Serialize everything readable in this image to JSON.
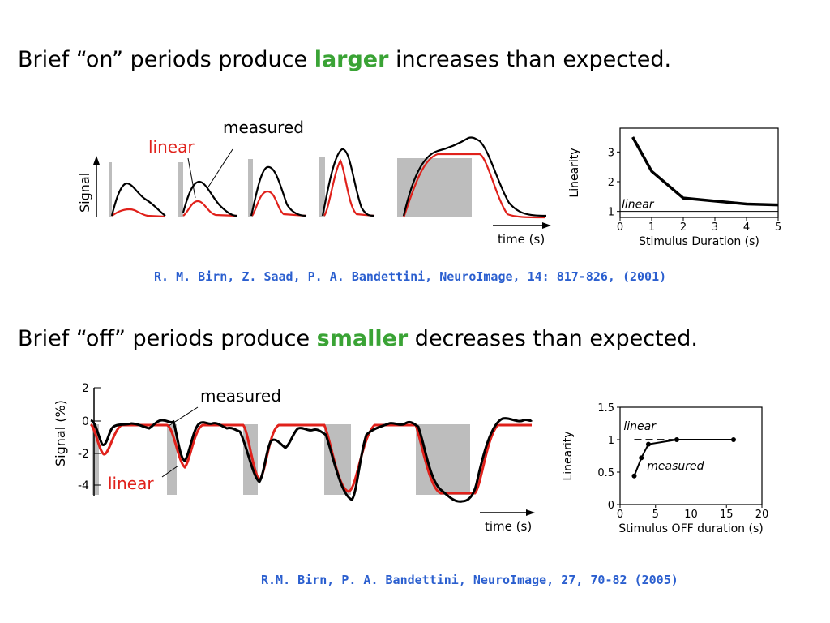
{
  "slide": {
    "section1": {
      "headline_pre": "Brief “on” periods produce ",
      "headline_accent": "larger",
      "headline_post": " increases than expected.",
      "citation": "R. M. Birn, Z. Saad, P. A. Bandettini, NeuroImage, 14: 817-826, (2001)"
    },
    "section2": {
      "headline_pre": "Brief “off” periods produce ",
      "headline_accent": "smaller",
      "headline_post": " decreases than expected.",
      "citation": "R.M. Birn, P. A. Bandettini, NeuroImage, 27, 70-82 (2005)"
    },
    "colors": {
      "accent_green": "#3aa335",
      "citation_blue": "#2b5fcf",
      "linear_red": "#e0211b",
      "stimulus_gray": "#bdbdbd"
    }
  },
  "figure1": {
    "label_measured": "measured",
    "label_linear": "linear",
    "ylabel": "Signal",
    "xlabel": "time (s)"
  },
  "figure2": {
    "label_measured": "measured",
    "label_linear": "linear",
    "ylabel": "Signal (%)",
    "xlabel": "time (s)",
    "yticks": [
      "2",
      "0",
      "-2",
      "-4"
    ]
  },
  "chart_data": [
    {
      "type": "line",
      "xlabel": "Stimulus Duration (s)",
      "ylabel": "Linearity",
      "xlim": [
        0,
        5
      ],
      "ylim": [
        0.8,
        3.8
      ],
      "xticks": [
        0,
        1,
        2,
        3,
        4,
        5
      ],
      "yticks": [
        1,
        2,
        3
      ],
      "annotations": [
        "linear"
      ],
      "series": [
        {
          "x": [
            0.4,
            1,
            2,
            4,
            5
          ],
          "y": [
            3.5,
            2.35,
            1.45,
            1.25,
            1.22
          ]
        },
        {
          "x": [
            0,
            5
          ],
          "y": [
            1,
            1
          ],
          "style": "reference"
        }
      ]
    },
    {
      "type": "line",
      "xlabel": "Stimulus OFF duration (s)",
      "ylabel": "Linearity",
      "xlim": [
        0,
        20
      ],
      "ylim": [
        0,
        1.5
      ],
      "xticks": [
        0,
        5,
        10,
        15,
        20
      ],
      "yticks": [
        "0",
        "0.5",
        "1",
        "1.5"
      ],
      "annotations": [
        "linear",
        "measured"
      ],
      "series": [
        {
          "name": "measured",
          "x": [
            2,
            3,
            4,
            8,
            16
          ],
          "y": [
            0.44,
            0.72,
            0.93,
            1.0,
            1.0
          ]
        },
        {
          "name": "linear",
          "x": [
            2,
            16
          ],
          "y": [
            1.0,
            1.0
          ],
          "style": "dashed"
        }
      ]
    }
  ]
}
